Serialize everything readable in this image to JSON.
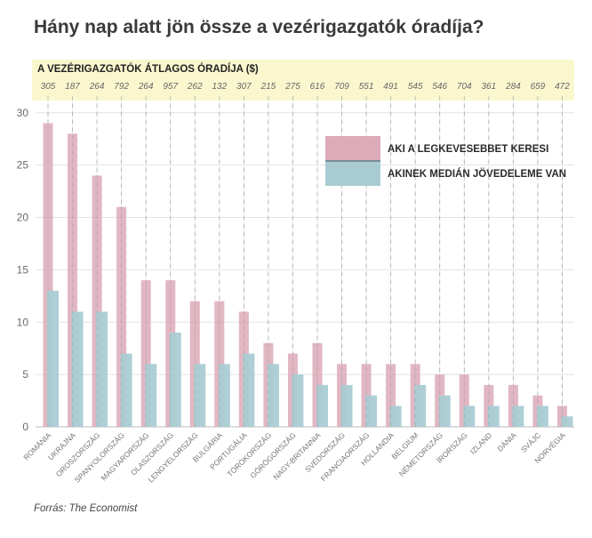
{
  "chart_data": {
    "type": "bar",
    "title": "Hány nap alatt jön össze a vezérigazgatók óradíja?",
    "wage_header": "A VEZÉRIGAZGATÓK ÁTLAGOS ÓRADÍJA ($)",
    "categories": [
      "ROMÁNIA",
      "UKRAJNA",
      "OROSZORSZÁG",
      "SPANYOLORSZÁG",
      "MAGYARORSZÁG",
      "OLASZORSZÁG",
      "LENGYELORSZÁG",
      "BULGÁRIA",
      "PORTUGÁLIA",
      "TÖRÖKORSZÁG",
      "GÖRÖGORSZÁG",
      "NAGY-BRITANNIA",
      "SVÉDORSZÁG",
      "FRANCIAORSZÁG",
      "HOLLANDIA",
      "BELGIUM",
      "NÉMETORSZÁG",
      "ÍRORSZÁG",
      "IZLAND",
      "DÁNIA",
      "SVÁJC",
      "NORVÉGIA"
    ],
    "hourly_wage_usd": [
      "305",
      "187",
      "264",
      "792",
      "264",
      "957",
      "262",
      "132",
      "307",
      "215",
      "275",
      "616",
      "709",
      "551",
      "491",
      "545",
      "546",
      "704",
      "361",
      "284",
      "659",
      "472"
    ],
    "series": [
      {
        "name": "AKI A LEGKEVESEBBET KERESI",
        "color": "#dcaab8",
        "values": [
          29,
          28,
          24,
          21,
          14,
          14,
          12,
          12,
          11,
          8,
          7,
          8,
          6,
          6,
          6,
          6,
          5,
          5,
          4,
          4,
          3,
          2
        ]
      },
      {
        "name": "AKINEK MEDIÁN JÖVEDELEME VAN",
        "color": "#a9ccd3",
        "values": [
          13,
          11,
          11,
          7,
          6,
          9,
          6,
          6,
          7,
          6,
          5,
          4,
          4,
          3,
          2,
          4,
          3,
          2,
          2,
          2,
          2,
          1
        ]
      }
    ],
    "y_ticks": [
      "0",
      "5",
      "10",
      "15",
      "20",
      "25",
      "30"
    ],
    "ylim": [
      0,
      31
    ],
    "grid": true,
    "legend_position": "top-right",
    "source": "Forrás: The Economist"
  }
}
